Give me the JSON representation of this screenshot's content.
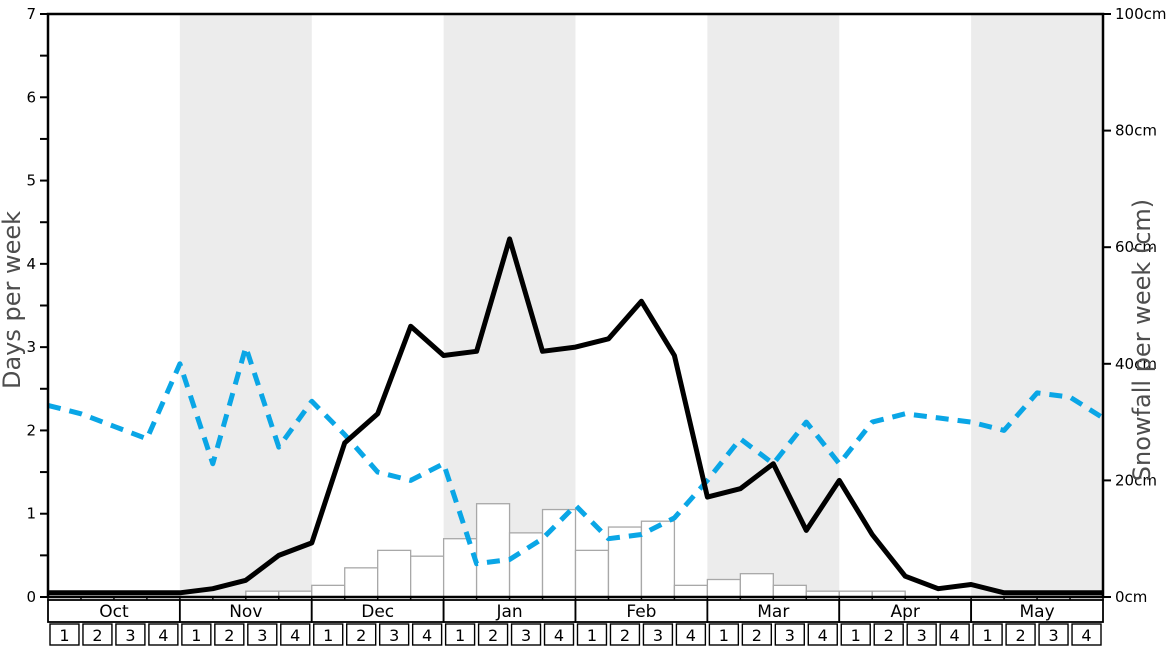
{
  "chart_data": {
    "type": "line+bar",
    "title": "",
    "months": [
      {
        "label": "Oct",
        "shaded": false,
        "weeks": [
          "1",
          "2",
          "3",
          "4"
        ]
      },
      {
        "label": "Nov",
        "shaded": true,
        "weeks": [
          "1",
          "2",
          "3",
          "4"
        ]
      },
      {
        "label": "Dec",
        "shaded": false,
        "weeks": [
          "1",
          "2",
          "3",
          "4"
        ]
      },
      {
        "label": "Jan",
        "shaded": true,
        "weeks": [
          "1",
          "2",
          "3",
          "4"
        ]
      },
      {
        "label": "Feb",
        "shaded": false,
        "weeks": [
          "1",
          "2",
          "3",
          "4"
        ]
      },
      {
        "label": "Mar",
        "shaded": true,
        "weeks": [
          "1",
          "2",
          "3",
          "4"
        ]
      },
      {
        "label": "Apr",
        "shaded": false,
        "weeks": [
          "1",
          "2",
          "3",
          "4"
        ]
      },
      {
        "label": "May",
        "shaded": true,
        "weeks": [
          "1",
          "2",
          "3",
          "4"
        ]
      }
    ],
    "left_axis": {
      "label": "Days per week",
      "min": 0,
      "max": 7,
      "minor_step": 0.5,
      "tick_labels": [
        "0",
        "1",
        "2",
        "3",
        "4",
        "5",
        "6",
        "7"
      ]
    },
    "right_axis": {
      "label": "Snowfall per week (cm)",
      "min": 0,
      "max": 100,
      "step": 20,
      "tick_labels": [
        "0cm",
        "20cm",
        "40cm",
        "60cm",
        "80cm",
        "100cm"
      ]
    },
    "series": [
      {
        "name": "black-solid-line",
        "axis": "days",
        "style": "solid",
        "color": "#000000",
        "values": [
          0.05,
          0.05,
          0.05,
          0.05,
          0.05,
          0.1,
          0.2,
          0.5,
          0.65,
          1.85,
          2.2,
          3.25,
          2.9,
          2.95,
          4.3,
          2.95,
          3.0,
          3.1,
          3.55,
          2.9,
          1.2,
          1.3,
          1.6,
          0.8,
          1.4,
          0.75,
          0.25,
          0.1,
          0.15,
          0.05,
          0.05,
          0.05,
          0.05
        ]
      },
      {
        "name": "blue-dashed-line",
        "axis": "days",
        "style": "dashed",
        "color": "#0aa6e6",
        "values": [
          2.3,
          2.2,
          2.05,
          1.9,
          2.8,
          1.6,
          3.0,
          1.8,
          2.35,
          1.95,
          1.5,
          1.4,
          1.6,
          0.4,
          0.45,
          0.7,
          1.1,
          0.7,
          0.75,
          0.95,
          1.4,
          1.9,
          1.6,
          2.1,
          1.6,
          2.1,
          2.2,
          2.15,
          2.1,
          2.0,
          2.45,
          2.4,
          2.15
        ]
      },
      {
        "name": "snowfall-bars-cm",
        "axis": "cm",
        "style": "bar",
        "color": "#ffffff",
        "border": "#a8a8a8",
        "values": [
          0,
          0,
          0,
          0,
          0,
          0,
          1,
          1,
          2,
          5,
          8,
          7,
          10,
          16,
          11,
          15,
          8,
          12,
          13,
          2,
          3,
          4,
          2,
          1,
          1,
          1,
          0,
          0,
          0,
          0,
          0,
          0
        ]
      }
    ],
    "colors": {
      "band": "#ececec",
      "axis": "#000000",
      "axis_label_gray": "#4d4d4d",
      "bar_fill": "#ffffff",
      "bar_border": "#a8a8a8",
      "blue": "#0aa6e6"
    },
    "layout_hints": {
      "grid": false,
      "legend": "none",
      "shaded_months": [
        "Nov",
        "Jan",
        "Mar",
        "May"
      ]
    }
  }
}
